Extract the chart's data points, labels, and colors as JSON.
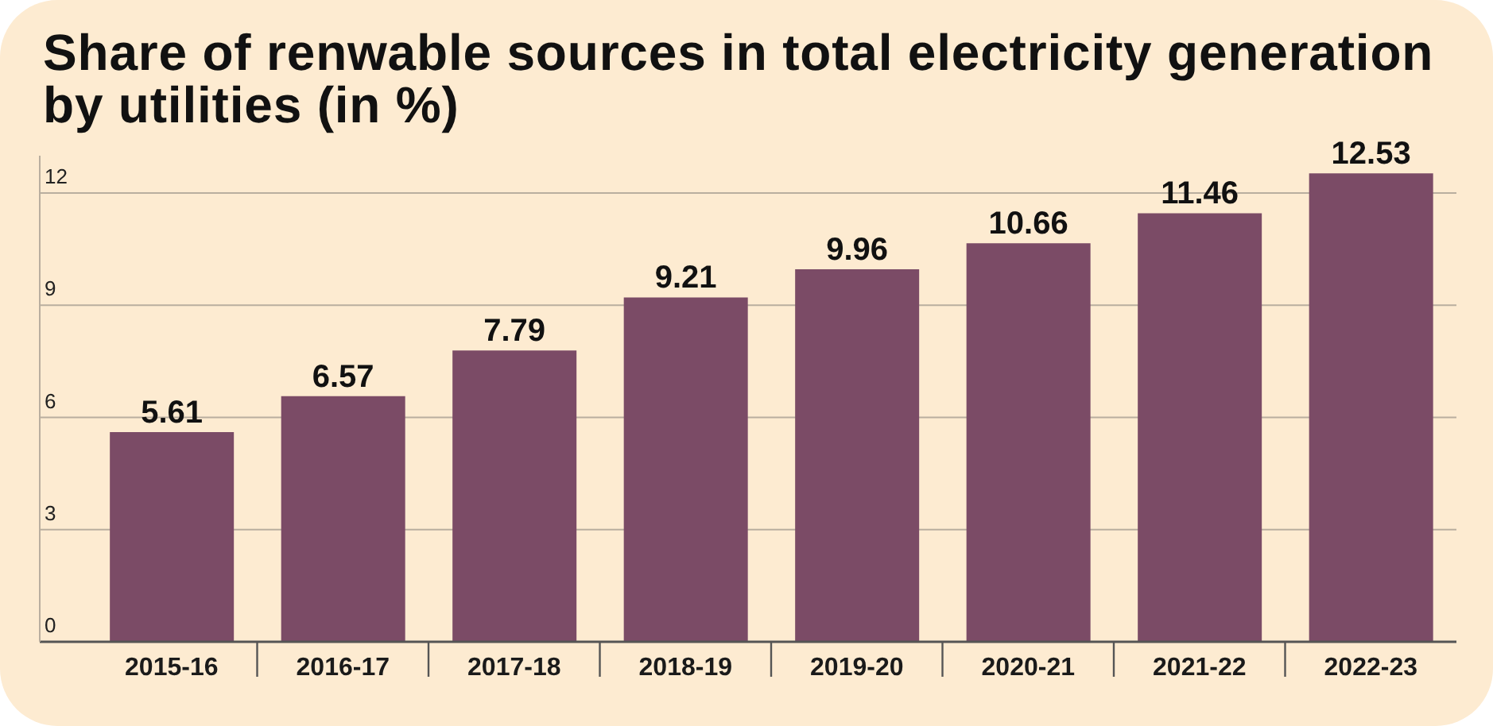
{
  "chart_data": {
    "type": "bar",
    "title": "Share of renwable sources in total electricity generation by utilities (in %)",
    "categories": [
      "2015-16",
      "2016-17",
      "2017-18",
      "2018-19",
      "2019-20",
      "2020-21",
      "2021-22",
      "2022-23"
    ],
    "values": [
      5.61,
      6.57,
      7.79,
      9.21,
      9.96,
      10.66,
      11.46,
      12.53
    ],
    "color": "#7b4b66",
    "ylim": [
      0,
      13
    ],
    "yticks": [
      0,
      3,
      6,
      9,
      12
    ],
    "grid": "y",
    "data_labels": true
  }
}
